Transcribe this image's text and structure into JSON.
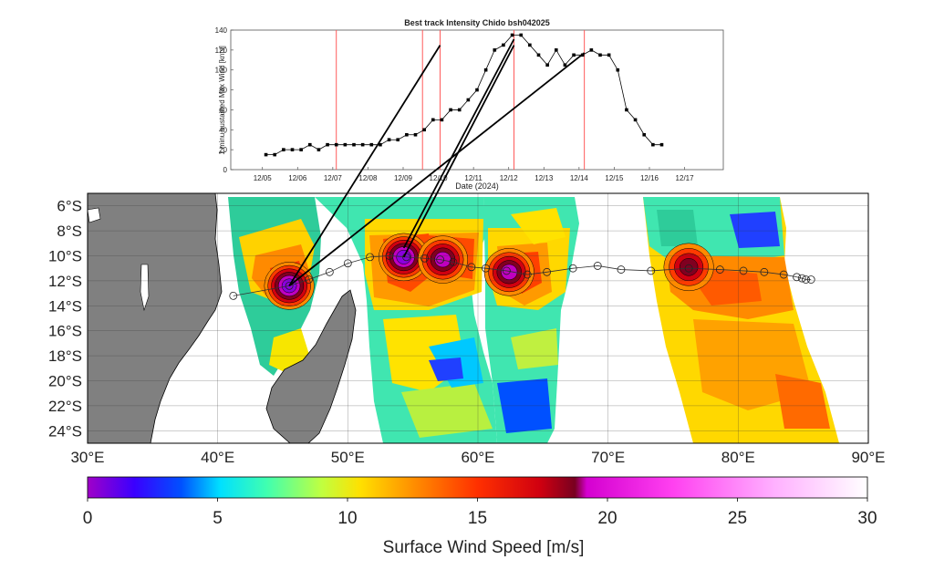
{
  "chart_data": [
    {
      "type": "line",
      "title": "Best track Intensity Chido bsh042025",
      "xlabel": "Date (2024)",
      "ylabel": "1 minu sustained Max Wind [knts]",
      "x_tick_labels": [
        "12/05",
        "12/06",
        "12/07",
        "12/08",
        "12/09",
        "12/10",
        "12/11",
        "12/12",
        "12/13",
        "12/14",
        "12/15",
        "12/16",
        "12/17"
      ],
      "ylim": [
        0,
        140
      ],
      "y_ticks": [
        0,
        20,
        40,
        60,
        80,
        100,
        120,
        140
      ],
      "marker_color": "#000000",
      "series": [
        {
          "values_x_days": [
            5.1,
            5.35,
            5.6,
            5.85,
            6.1,
            6.35,
            6.6,
            6.85,
            7.1,
            7.35,
            7.6,
            7.85,
            8.1,
            8.35,
            8.6,
            8.85,
            9.1,
            9.35,
            9.6,
            9.85,
            10.1,
            10.35,
            10.6,
            10.85,
            11.1,
            11.35,
            11.6,
            11.85,
            12.1,
            12.35,
            12.6,
            12.85,
            13.1,
            13.35,
            13.6,
            13.85,
            14.1,
            14.35,
            14.6,
            14.85,
            15.1,
            15.35,
            15.6,
            15.85,
            16.1,
            16.35
          ],
          "values": [
            15,
            15,
            20,
            20,
            20,
            25,
            20,
            25,
            25,
            25,
            25,
            25,
            25,
            25,
            30,
            30,
            35,
            35,
            40,
            50,
            50,
            60,
            60,
            70,
            80,
            100,
            120,
            125,
            135,
            135,
            125,
            115,
            105,
            120,
            105,
            115,
            115,
            120,
            115,
            115,
            100,
            60,
            50,
            35,
            25,
            25
          ]
        }
      ],
      "red_vertical_lines_days": [
        7.1,
        9.55,
        10.05,
        12.15,
        14.15
      ]
    },
    {
      "type": "heatmap",
      "title": "",
      "colorbar_label": "Surface Wind Speed [m/s]",
      "colorbar_ticks": [
        0,
        5,
        10,
        15,
        20,
        25,
        30
      ],
      "colorbar_range": [
        0,
        30
      ],
      "lon_ticks": [
        "30°E",
        "40°E",
        "50°E",
        "60°E",
        "70°E",
        "80°E",
        "90°E"
      ],
      "lat_ticks": [
        "6°S",
        "8°S",
        "10°S",
        "12°S",
        "14°S",
        "16°S",
        "18°S",
        "20°S",
        "22°S",
        "24°S"
      ],
      "lon_range": [
        30,
        90
      ],
      "lat_range": [
        -25,
        -5
      ],
      "storm_centers": [
        {
          "lon": 45.5,
          "lat": -12.4,
          "peak_ms": 18
        },
        {
          "lon": 54.3,
          "lat": -10.1,
          "peak_ms": 17
        },
        {
          "lon": 57.3,
          "lat": -10.3,
          "peak_ms": 16
        },
        {
          "lon": 62.4,
          "lat": -11.3,
          "peak_ms": 15
        },
        {
          "lon": 76.2,
          "lat": -10.9,
          "peak_ms": 13
        }
      ],
      "track": [
        {
          "lon": 85.6,
          "lat": -11.9
        },
        {
          "lon": 85.2,
          "lat": -11.9
        },
        {
          "lon": 84.9,
          "lat": -11.8
        },
        {
          "lon": 84.5,
          "lat": -11.7
        },
        {
          "lon": 83.5,
          "lat": -11.5
        },
        {
          "lon": 82.0,
          "lat": -11.3
        },
        {
          "lon": 80.4,
          "lat": -11.2
        },
        {
          "lon": 78.6,
          "lat": -11.1
        },
        {
          "lon": 76.2,
          "lat": -11.0
        },
        {
          "lon": 73.3,
          "lat": -11.2
        },
        {
          "lon": 71.0,
          "lat": -11.1
        },
        {
          "lon": 69.2,
          "lat": -10.8
        },
        {
          "lon": 67.3,
          "lat": -11.0
        },
        {
          "lon": 65.3,
          "lat": -11.3
        },
        {
          "lon": 63.8,
          "lat": -11.5
        },
        {
          "lon": 62.2,
          "lat": -11.2
        },
        {
          "lon": 60.6,
          "lat": -11.0
        },
        {
          "lon": 59.5,
          "lat": -10.9
        },
        {
          "lon": 58.1,
          "lat": -10.5
        },
        {
          "lon": 57.1,
          "lat": -10.3
        },
        {
          "lon": 55.9,
          "lat": -10.2
        },
        {
          "lon": 54.5,
          "lat": -10.1
        },
        {
          "lon": 53.2,
          "lat": -10.0
        },
        {
          "lon": 51.7,
          "lat": -10.1
        },
        {
          "lon": 50.0,
          "lat": -10.6
        },
        {
          "lon": 48.6,
          "lat": -11.3
        },
        {
          "lon": 47.0,
          "lat": -11.9
        },
        {
          "lon": 45.5,
          "lat": -12.4
        },
        {
          "lon": 41.2,
          "lat": -13.2
        }
      ],
      "land_color": "#808080"
    }
  ]
}
